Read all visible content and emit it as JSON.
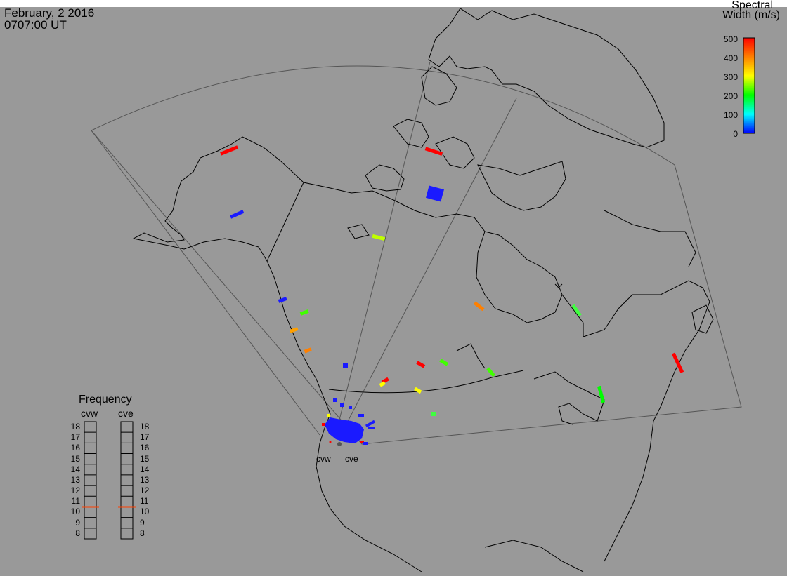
{
  "header": {
    "date": "February, 2 2016",
    "time": "0707:00 UT"
  },
  "colorbar": {
    "title_line1": "Spectral",
    "title_line2": "Width (m/s)",
    "ticks": [
      "500",
      "400",
      "300",
      "200",
      "100",
      "0"
    ],
    "stops": [
      "#ff0000",
      "#ff8000",
      "#ffff00",
      "#00ff00",
      "#00ffff",
      "#0000ff"
    ]
  },
  "frequency": {
    "title": "Frequency",
    "radars": [
      "cvw",
      "cve"
    ],
    "scale": [
      "18",
      "17",
      "16",
      "15",
      "14",
      "13",
      "12",
      "11",
      "10",
      "9",
      "8"
    ],
    "cvw_mhz": 10.5,
    "cve_mhz": 10.5,
    "marker_color": "#ff4000"
  },
  "radar_labels": [
    "cvw",
    "cve"
  ],
  "colors": {
    "background": "#999999",
    "coast": "#000000",
    "fov": "#555555"
  }
}
